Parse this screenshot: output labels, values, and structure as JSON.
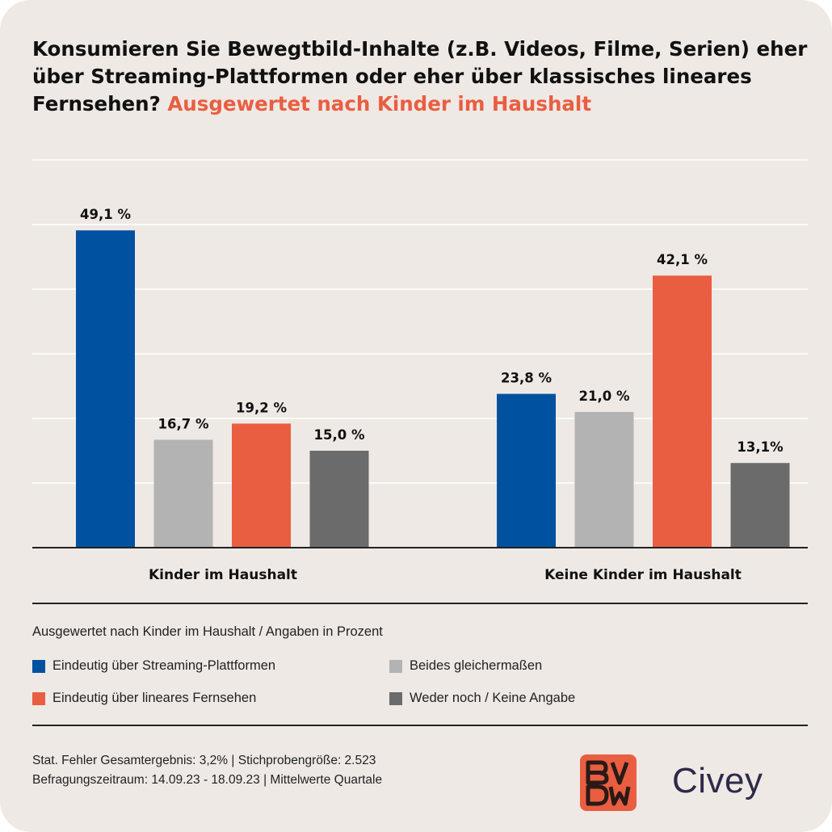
{
  "title": {
    "main": "Konsumieren Sie Bewegtbild-Inhalte (z.B. Videos, Filme, Serien) eher über Streaming-Plattformen oder eher über klassisches lineares Fernsehen?",
    "accent": "Ausgewertet nach Kinder im Haushalt"
  },
  "colors": {
    "streaming": "#0052a0",
    "beides": "#b3b3b3",
    "linear": "#e95e41",
    "weder": "#6b6b6b",
    "accent": "#e95e41",
    "background": "#efe9e5"
  },
  "chart_data": {
    "type": "bar",
    "categories": [
      "Kinder im Haushalt",
      "Keine Kinder im Haushalt"
    ],
    "series": [
      {
        "name": "Eindeutig über Streaming-Plattformen",
        "values": [
          49.1,
          23.8
        ],
        "labels": [
          "49,1 %",
          "23,8 %"
        ],
        "color": "#0052a0"
      },
      {
        "name": "Beides gleichermaßen",
        "values": [
          16.7,
          21.0
        ],
        "labels": [
          "16,7 %",
          "21,0 %"
        ],
        "color": "#b3b3b3"
      },
      {
        "name": "Eindeutig über lineares Fernsehen",
        "values": [
          19.2,
          42.1
        ],
        "labels": [
          "19,2 %",
          "42,1 %"
        ],
        "color": "#e95e41"
      },
      {
        "name": "Weder noch / Keine Angabe",
        "values": [
          15.0,
          13.1
        ],
        "labels": [
          "15,0 %",
          "13,1%"
        ],
        "color": "#6b6b6b"
      }
    ],
    "ylim": [
      0,
      60
    ],
    "grid": true,
    "legend": "bottom"
  },
  "legend": {
    "title": "Ausgewertet nach Kinder im Haushalt / Angaben in Prozent",
    "items": [
      "Eindeutig über Streaming-Plattformen",
      "Beides gleichermaßen",
      "Eindeutig über lineares Fernsehen",
      "Weder noch / Keine Angabe"
    ]
  },
  "footer": {
    "line1": "Stat. Fehler Gesamtergebnis: 3,2% | Stichprobengröße: 2.523",
    "line2": "Befragungszeitraum: 14.09.23 - 18.09.23 | Mittelwerte Quartale"
  },
  "logos": {
    "bvdw": "BVDW",
    "civey": "Civey"
  }
}
